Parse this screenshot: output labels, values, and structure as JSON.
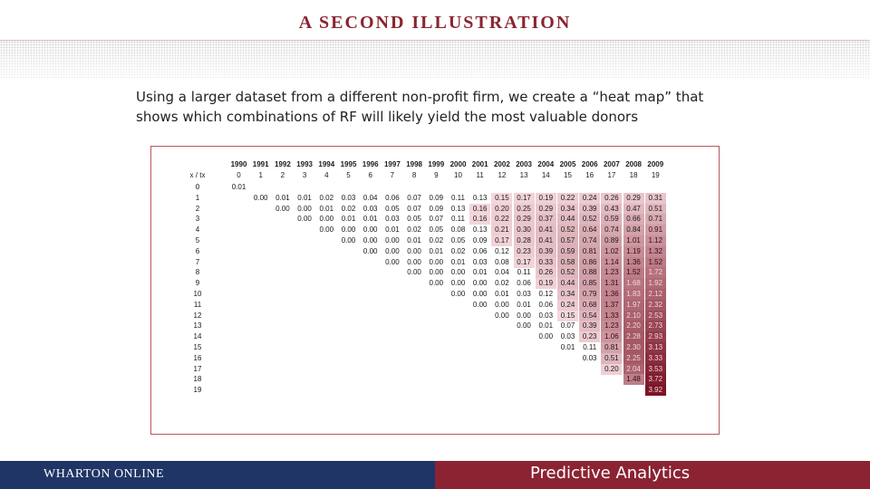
{
  "header": {
    "title": "A SECOND ILLUSTRATION"
  },
  "intro": {
    "line1": "Using a larger dataset from a different non-profit firm, we create a “heat map” that",
    "line2": "shows which combinations of RF will likely yield the most valuable donors"
  },
  "table": {
    "corner_label": "x / tx",
    "years": [
      "1990",
      "1991",
      "1992",
      "1993",
      "1994",
      "1995",
      "1996",
      "1997",
      "1998",
      "1999",
      "2000",
      "2001",
      "2002",
      "2003",
      "2004",
      "2005",
      "2006",
      "2007",
      "2008",
      "2009"
    ],
    "tx": [
      "0",
      "1",
      "2",
      "3",
      "4",
      "5",
      "6",
      "7",
      "8",
      "9",
      "10",
      "11",
      "12",
      "13",
      "14",
      "15",
      "16",
      "17",
      "18",
      "19"
    ],
    "row_labels": [
      "0",
      "1",
      "2",
      "3",
      "4",
      "5",
      "6",
      "7",
      "8",
      "9",
      "10",
      "11",
      "12",
      "13",
      "14",
      "15",
      "16",
      "17",
      "18",
      "19"
    ],
    "rows": [
      [
        "0.01",
        "",
        "",
        "",
        "",
        "",
        "",
        "",
        "",
        "",
        "",
        "",
        "",
        "",
        "",
        "",
        "",
        "",
        "",
        ""
      ],
      [
        "",
        "0.00",
        "0.01",
        "0.01",
        "0.02",
        "0.03",
        "0.04",
        "0.06",
        "0.07",
        "0.09",
        "0.11",
        "0.13",
        "0.15",
        "0.17",
        "0.19",
        "0.22",
        "0.24",
        "0.26",
        "0.29",
        "0.31"
      ],
      [
        "",
        "",
        "0.00",
        "0.00",
        "0.01",
        "0.02",
        "0.03",
        "0.05",
        "0.07",
        "0.09",
        "0.13",
        "0.16",
        "0.20",
        "0.25",
        "0.29",
        "0.34",
        "0.39",
        "0.43",
        "0.47",
        "0.51"
      ],
      [
        "",
        "",
        "",
        "0.00",
        "0.00",
        "0.01",
        "0.01",
        "0.03",
        "0.05",
        "0.07",
        "0.11",
        "0.16",
        "0.22",
        "0.29",
        "0.37",
        "0.44",
        "0.52",
        "0.59",
        "0.66",
        "0.71"
      ],
      [
        "",
        "",
        "",
        "",
        "0.00",
        "0.00",
        "0.00",
        "0.01",
        "0.02",
        "0.05",
        "0.08",
        "0.13",
        "0.21",
        "0.30",
        "0.41",
        "0.52",
        "0.64",
        "0.74",
        "0.84",
        "0.91"
      ],
      [
        "",
        "",
        "",
        "",
        "",
        "0.00",
        "0.00",
        "0.00",
        "0.01",
        "0.02",
        "0.05",
        "0.09",
        "0.17",
        "0.28",
        "0.41",
        "0.57",
        "0.74",
        "0.89",
        "1.01",
        "1.12"
      ],
      [
        "",
        "",
        "",
        "",
        "",
        "",
        "0.00",
        "0.00",
        "0.00",
        "0.01",
        "0.02",
        "0.06",
        "0.12",
        "0.23",
        "0.39",
        "0.59",
        "0.81",
        "1.02",
        "1.19",
        "1.32"
      ],
      [
        "",
        "",
        "",
        "",
        "",
        "",
        "",
        "0.00",
        "0.00",
        "0.00",
        "0.01",
        "0.03",
        "0.08",
        "0.17",
        "0.33",
        "0.58",
        "0.86",
        "1.14",
        "1.36",
        "1.52"
      ],
      [
        "",
        "",
        "",
        "",
        "",
        "",
        "",
        "",
        "0.00",
        "0.00",
        "0.00",
        "0.01",
        "0.04",
        "0.11",
        "0.26",
        "0.52",
        "0.88",
        "1.23",
        "1.52",
        "1.72"
      ],
      [
        "",
        "",
        "",
        "",
        "",
        "",
        "",
        "",
        "",
        "0.00",
        "0.00",
        "0.00",
        "0.02",
        "0.06",
        "0.19",
        "0.44",
        "0.85",
        "1.31",
        "1.68",
        "1.92"
      ],
      [
        "",
        "",
        "",
        "",
        "",
        "",
        "",
        "",
        "",
        "",
        "0.00",
        "0.00",
        "0.01",
        "0.03",
        "0.12",
        "0.34",
        "0.79",
        "1.36",
        "1.83",
        "2.12"
      ],
      [
        "",
        "",
        "",
        "",
        "",
        "",
        "",
        "",
        "",
        "",
        "",
        "0.00",
        "0.00",
        "0.01",
        "0.06",
        "0.24",
        "0.68",
        "1.37",
        "1.97",
        "2.32"
      ],
      [
        "",
        "",
        "",
        "",
        "",
        "",
        "",
        "",
        "",
        "",
        "",
        "",
        "0.00",
        "0.00",
        "0.03",
        "0.15",
        "0.54",
        "1.33",
        "2.10",
        "2.53"
      ],
      [
        "",
        "",
        "",
        "",
        "",
        "",
        "",
        "",
        "",
        "",
        "",
        "",
        "",
        "0.00",
        "0.01",
        "0.07",
        "0.39",
        "1.23",
        "2.20",
        "2.73"
      ],
      [
        "",
        "",
        "",
        "",
        "",
        "",
        "",
        "",
        "",
        "",
        "",
        "",
        "",
        "",
        "0.00",
        "0.03",
        "0.23",
        "1.06",
        "2.28",
        "2.93"
      ],
      [
        "",
        "",
        "",
        "",
        "",
        "",
        "",
        "",
        "",
        "",
        "",
        "",
        "",
        "",
        "",
        "0.01",
        "0.11",
        "0.81",
        "2.30",
        "3.13"
      ],
      [
        "",
        "",
        "",
        "",
        "",
        "",
        "",
        "",
        "",
        "",
        "",
        "",
        "",
        "",
        "",
        "",
        "0.03",
        "0.51",
        "2.25",
        "3.33"
      ],
      [
        "",
        "",
        "",
        "",
        "",
        "",
        "",
        "",
        "",
        "",
        "",
        "",
        "",
        "",
        "",
        "",
        "",
        "0.20",
        "2.04",
        "3.53"
      ],
      [
        "",
        "",
        "",
        "",
        "",
        "",
        "",
        "",
        "",
        "",
        "",
        "",
        "",
        "",
        "",
        "",
        "",
        "",
        "1.48",
        "3.72"
      ],
      [
        "",
        "",
        "",
        "",
        "",
        "",
        "",
        "",
        "",
        "",
        "",
        "",
        "",
        "",
        "",
        "",
        "",
        "",
        "",
        "3.92"
      ]
    ],
    "heat_low_color": "#f4d7dc",
    "heat_high_color": "#7a1527"
  },
  "footer": {
    "left_text": "WHARTON ONLINE",
    "right_text": "Predictive Analytics",
    "left_color": "#1f3566",
    "right_color": "#8b2332"
  }
}
